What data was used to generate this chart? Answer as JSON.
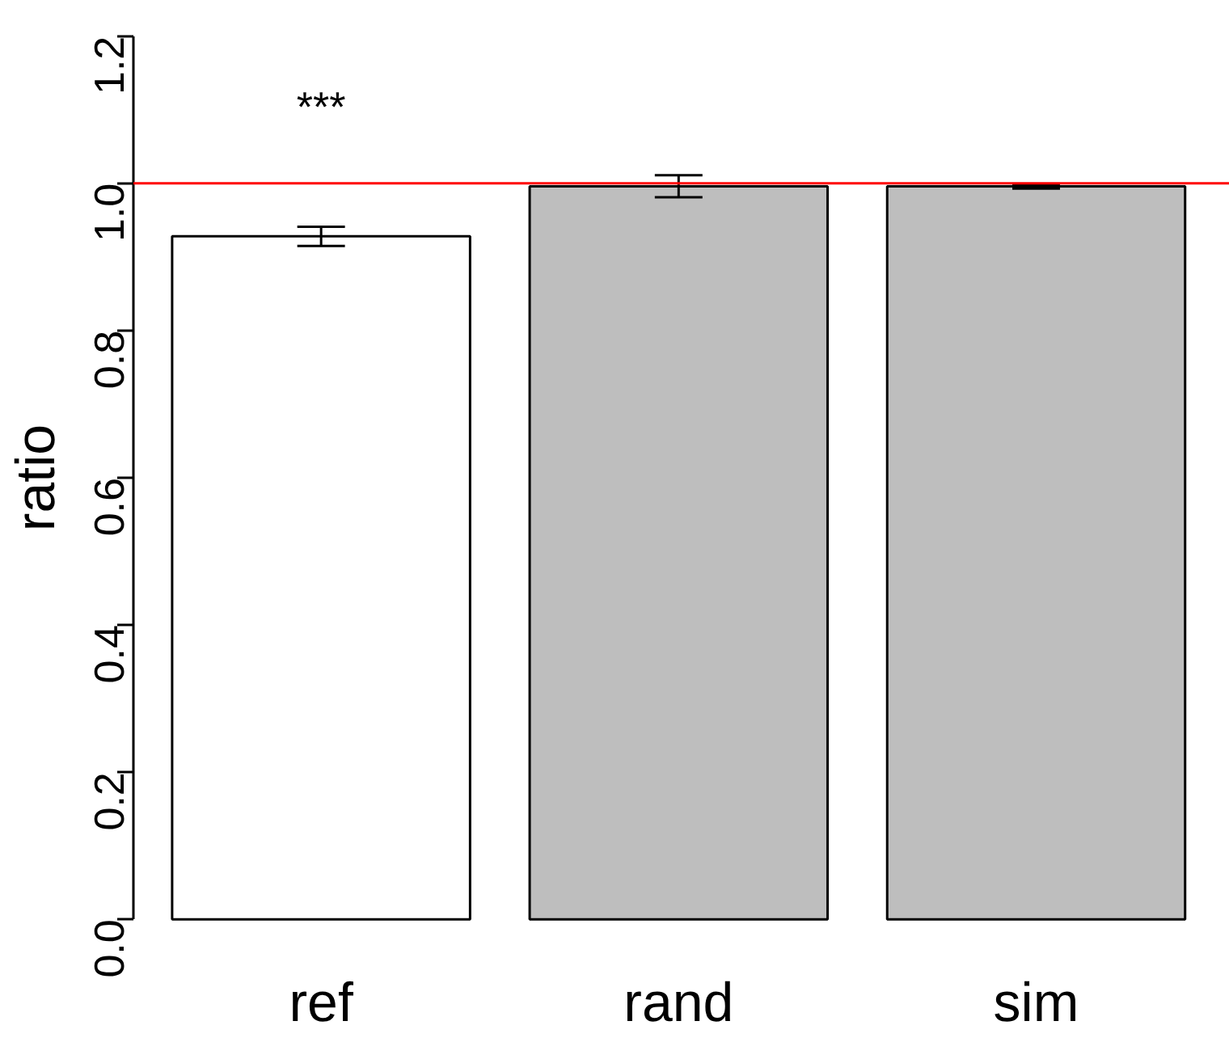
{
  "chart_data": {
    "type": "bar",
    "categories": [
      "ref",
      "rand",
      "sim"
    ],
    "values": [
      0.928,
      0.996,
      0.996
    ],
    "errors": [
      0.013,
      0.015,
      0.003
    ],
    "colors": [
      "#ffffff",
      "#bebebe",
      "#bebebe"
    ],
    "ylabel": "ratio",
    "ylim": [
      0,
      1.2
    ],
    "yticks": [
      {
        "value": 0,
        "label": "0.0"
      },
      0.2,
      0.4,
      0.6,
      0.8,
      {
        "value": 1,
        "label": "1.0"
      },
      1.2
    ],
    "ref_lines": [
      {
        "axis": "y",
        "value": 1,
        "color": "#ff0000"
      }
    ],
    "annotations": [
      "***"
    ],
    "grid": false
  }
}
